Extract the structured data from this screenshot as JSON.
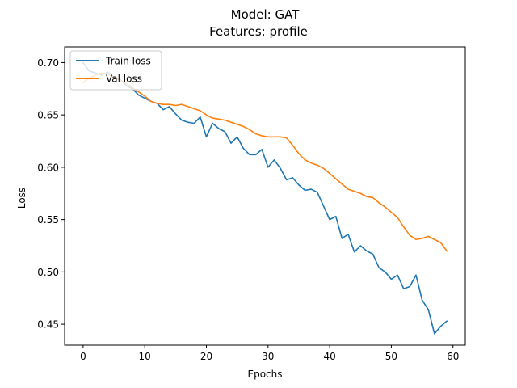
{
  "chart_data": {
    "type": "line",
    "title": "Model: GAT",
    "subtitle": "Features: profile",
    "xlabel": "Epochs",
    "ylabel": "Loss",
    "xlim": [
      -3,
      62
    ],
    "ylim": [
      0.43,
      0.715
    ],
    "xticks": [
      0,
      10,
      20,
      30,
      40,
      50,
      60
    ],
    "yticks": [
      0.45,
      0.5,
      0.55,
      0.6,
      0.65,
      0.7
    ],
    "grid": false,
    "legend_position": "top-left",
    "x": [
      0,
      1,
      2,
      3,
      4,
      5,
      6,
      7,
      8,
      9,
      10,
      11,
      12,
      13,
      14,
      15,
      16,
      17,
      18,
      19,
      20,
      21,
      22,
      23,
      24,
      25,
      26,
      27,
      28,
      29,
      30,
      31,
      32,
      33,
      34,
      35,
      36,
      37,
      38,
      39,
      40,
      41,
      42,
      43,
      44,
      45,
      46,
      47,
      48,
      49,
      50,
      51,
      52,
      53,
      54,
      55,
      56,
      57,
      58,
      59
    ],
    "series": [
      {
        "name": "Train loss",
        "color": "#1f77b4",
        "values": [
          0.7,
          0.692,
          0.69,
          0.688,
          0.691,
          0.686,
          0.684,
          0.678,
          0.675,
          0.669,
          0.666,
          0.663,
          0.661,
          0.655,
          0.658,
          0.651,
          0.645,
          0.643,
          0.642,
          0.648,
          0.629,
          0.642,
          0.637,
          0.634,
          0.623,
          0.629,
          0.618,
          0.612,
          0.612,
          0.617,
          0.6,
          0.607,
          0.599,
          0.588,
          0.59,
          0.583,
          0.578,
          0.579,
          0.576,
          0.563,
          0.55,
          0.553,
          0.532,
          0.536,
          0.519,
          0.525,
          0.52,
          0.517,
          0.504,
          0.5,
          0.493,
          0.497,
          0.484,
          0.486,
          0.497,
          0.473,
          0.464,
          0.441,
          0.448,
          0.453
        ]
      },
      {
        "name": "Val loss",
        "color": "#ff7f0e",
        "values": [
          0.681,
          0.685,
          0.688,
          0.69,
          0.689,
          0.686,
          0.683,
          0.68,
          0.676,
          0.672,
          0.668,
          0.663,
          0.661,
          0.66,
          0.66,
          0.659,
          0.66,
          0.658,
          0.656,
          0.654,
          0.65,
          0.647,
          0.646,
          0.645,
          0.643,
          0.641,
          0.639,
          0.636,
          0.632,
          0.63,
          0.629,
          0.629,
          0.629,
          0.628,
          0.621,
          0.613,
          0.607,
          0.604,
          0.602,
          0.599,
          0.594,
          0.589,
          0.584,
          0.579,
          0.577,
          0.575,
          0.572,
          0.571,
          0.566,
          0.562,
          0.557,
          0.552,
          0.543,
          0.535,
          0.531,
          0.532,
          0.534,
          0.531,
          0.528,
          0.52
        ]
      }
    ]
  }
}
